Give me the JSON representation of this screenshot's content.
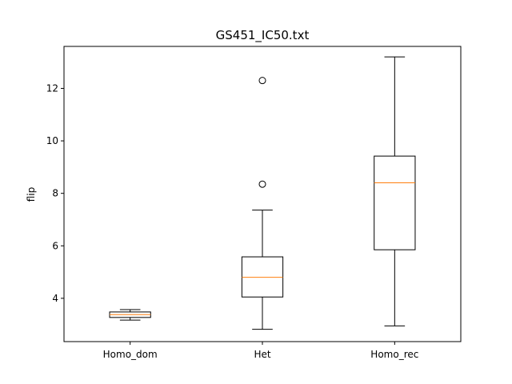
{
  "chart_data": {
    "type": "box",
    "title": "GS451_IC50.txt",
    "xlabel": "",
    "ylabel": "flip",
    "categories": [
      "Homo_dom",
      "Het",
      "Homo_rec"
    ],
    "ylim": [
      2.35,
      13.6
    ],
    "yticks": [
      4,
      6,
      8,
      10,
      12
    ],
    "grid": false,
    "boxes": [
      {
        "category": "Homo_dom",
        "whislo": 3.17,
        "q1": 3.27,
        "med": 3.38,
        "q3": 3.48,
        "whishi": 3.57,
        "fliers": []
      },
      {
        "category": "Het",
        "whislo": 2.82,
        "q1": 4.05,
        "med": 4.8,
        "q3": 5.58,
        "whishi": 7.36,
        "fliers": [
          8.35,
          12.3
        ]
      },
      {
        "category": "Homo_rec",
        "whislo": 2.95,
        "q1": 5.85,
        "med": 8.4,
        "q3": 9.42,
        "whishi": 13.2,
        "fliers": []
      }
    ],
    "colors": {
      "box": "#000000",
      "median": "#ff7f0e",
      "flier": "#000000"
    }
  }
}
